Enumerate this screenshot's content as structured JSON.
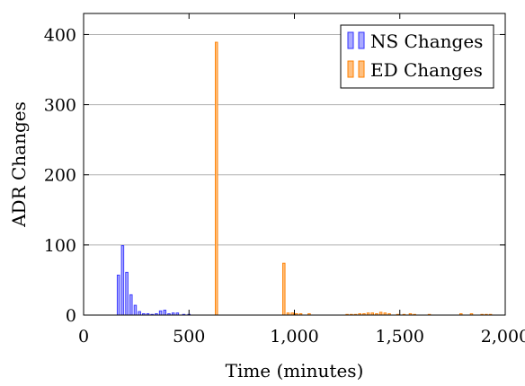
{
  "chart_data": {
    "type": "bar",
    "title": "",
    "xlabel": "Time (minutes)",
    "ylabel": "ADR Changes",
    "xlim": [
      0,
      2000
    ],
    "ylim": [
      0,
      430
    ],
    "x_ticks": [
      0,
      500,
      1000,
      1500,
      2000
    ],
    "x_tick_labels": [
      "0",
      "500",
      "1,000",
      "1,500",
      "2,000"
    ],
    "y_ticks": [
      0,
      100,
      200,
      300,
      400
    ],
    "y_tick_labels": [
      "0",
      "100",
      "200",
      "300",
      "400"
    ],
    "grid": "horizontal",
    "legend_position": "top-right",
    "series": [
      {
        "name": "NS Changes",
        "color": "#3333ff",
        "fill": "#aaaaff",
        "x": [
          165,
          185,
          205,
          225,
          245,
          265,
          285,
          305,
          325,
          345,
          365,
          385,
          405,
          425,
          445,
          475,
          500
        ],
        "values": [
          57,
          99,
          61,
          29,
          14,
          5,
          2,
          2,
          1,
          2,
          6,
          7,
          2,
          3,
          3,
          1,
          1
        ]
      },
      {
        "name": "ED Changes",
        "color": "#ff8000",
        "fill": "#ffc080",
        "x": [
          630,
          950,
          970,
          990,
          1010,
          1030,
          1070,
          1250,
          1270,
          1290,
          1310,
          1330,
          1350,
          1370,
          1390,
          1410,
          1430,
          1450,
          1490,
          1520,
          1550,
          1570,
          1640,
          1790,
          1840,
          1890,
          1910,
          1930
        ],
        "values": [
          389,
          74,
          3,
          3,
          2,
          2,
          2,
          1,
          1,
          1,
          2,
          2,
          3,
          3,
          2,
          4,
          3,
          2,
          1,
          1,
          2,
          1,
          1,
          2,
          2,
          1,
          1,
          1
        ]
      }
    ]
  }
}
